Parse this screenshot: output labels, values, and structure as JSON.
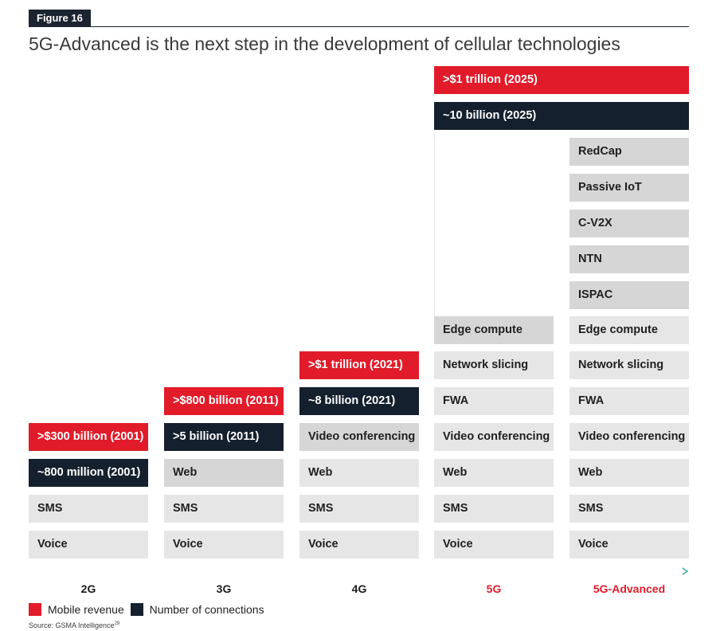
{
  "figure_label": "Figure 16",
  "title": "5G-Advanced is the next step in the development of cellular technologies",
  "columns": {
    "g2": {
      "label": "2G",
      "revenue": ">$300 billion (2001)",
      "connections": "~800 million (2001)",
      "services": [
        "SMS",
        "Voice"
      ]
    },
    "g3": {
      "label": "3G",
      "revenue": ">$800 billion (2011)",
      "connections": ">5 billion (2011)",
      "services": [
        "Web",
        "SMS",
        "Voice"
      ]
    },
    "g4": {
      "label": "4G",
      "revenue": ">$1 trillion (2021)",
      "connections": "~8 billion (2021)",
      "services": [
        "Video conferencing",
        "Web",
        "SMS",
        "Voice"
      ]
    },
    "g5": {
      "label": "5G",
      "revenue": ">$1 trillion (2025)",
      "connections": "~10 billion (2025)",
      "services": [
        "Edge compute",
        "Network slicing",
        "FWA",
        "Video conferencing",
        "Web",
        "SMS",
        "Voice"
      ]
    },
    "g5a": {
      "label": "5G-Advanced",
      "services": [
        "RedCap",
        "Passive IoT",
        "C-V2X",
        "NTN",
        "ISPAC",
        "Edge compute",
        "Network slicing",
        "FWA",
        "Video conferencing",
        "Web",
        "SMS",
        "Voice"
      ]
    }
  },
  "legend": {
    "revenue": "Mobile revenue",
    "connections": "Number of connections"
  },
  "source": {
    "text": "Source: GSMA Intelligence",
    "note": "29"
  },
  "colors": {
    "revenue": "#e11b2a",
    "connections": "#15202e",
    "service": "#e6e6e6",
    "highlight_service": "#d6d6d6",
    "axis_start": "#1c2430",
    "axis_end": "#3aa6a0"
  }
}
